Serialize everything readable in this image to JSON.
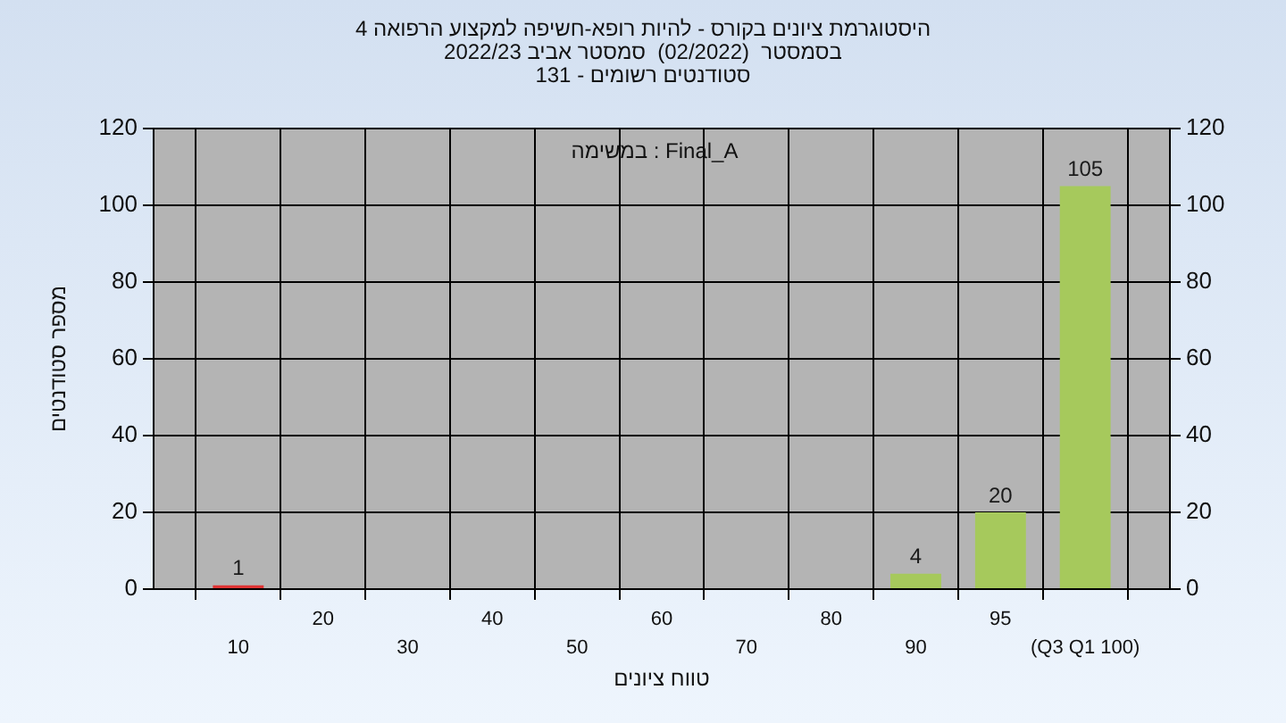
{
  "chart_data": {
    "type": "bar",
    "title": "היסטוגרמת ציונים בקורס - להיות רופא-חשיפה למקצוע הרפואה 4",
    "subtitle": "בסמסטר  (02/2022)  סמסטר אביב 2022/23\nסטודנטים רשומים - 131",
    "xlabel": "טווח ציונים",
    "ylabel": "מספר סטודנטים",
    "annotations": [
      "במשימה : Final_A"
    ],
    "categories": [
      "10",
      "20",
      "30",
      "40",
      "50",
      "60",
      "70",
      "80",
      "90",
      "95",
      "(Q3 Q1 100)"
    ],
    "values": [
      1,
      0,
      0,
      0,
      0,
      0,
      0,
      0,
      4,
      20,
      105
    ],
    "colors": [
      "#e03434",
      "#a6c95c",
      "#a6c95c",
      "#a6c95c",
      "#a6c95c",
      "#a6c95c",
      "#a6c95c",
      "#a6c95c",
      "#a6c95c",
      "#a6c95c",
      "#a6c95c"
    ],
    "value_labels": [
      "1",
      null,
      null,
      null,
      null,
      null,
      null,
      null,
      "4",
      "20",
      "105"
    ],
    "ylim": [
      0,
      120
    ],
    "yticks": [
      0,
      20,
      40,
      60,
      80,
      100,
      120
    ],
    "y2lim": [
      0,
      120
    ],
    "y2ticks": [
      0,
      20,
      40,
      60,
      80,
      100,
      120
    ],
    "grid": true
  }
}
